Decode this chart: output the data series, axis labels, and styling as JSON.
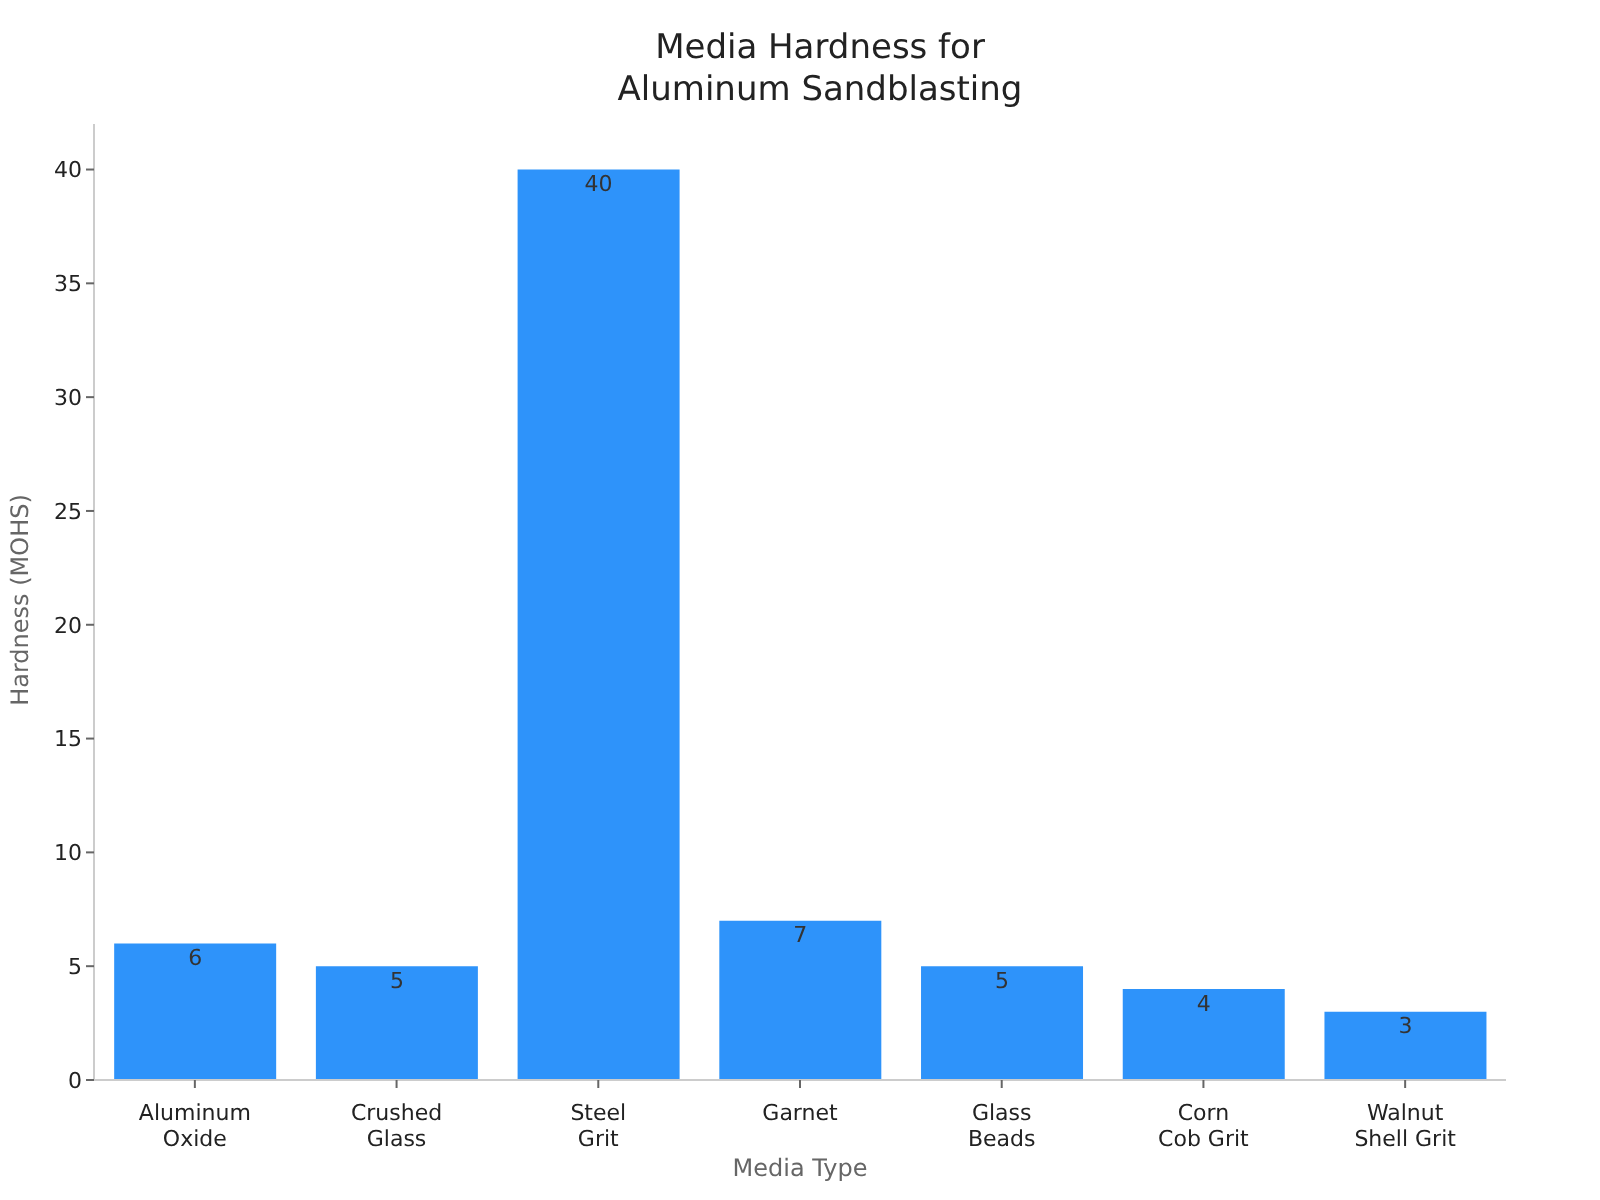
{
  "chart_data": {
    "type": "bar",
    "title": "Media Hardness for Aluminum Sandblasting",
    "xlabel": "Media Type",
    "ylabel": "Hardness (MOHS)",
    "categories": [
      "Aluminum Oxide",
      "Crushed Glass",
      "Steel Grit",
      "Garnet",
      "Glass Beads",
      "Corn Cob Grit",
      "Walnut Shell Grit"
    ],
    "values": [
      6,
      5,
      40,
      7,
      5,
      4,
      3
    ],
    "color": "#2e93fa",
    "ylim": [
      0,
      42
    ],
    "yticks": [
      0,
      5,
      10,
      15,
      20,
      25,
      30,
      35,
      40
    ],
    "grid": false,
    "data_labels": true
  }
}
